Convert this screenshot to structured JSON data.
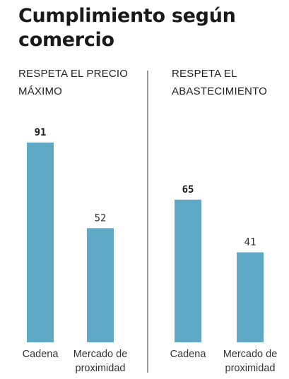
{
  "title": "Cumplimiento según comercio",
  "colors": {
    "bar": "#5fa8c6",
    "divider": "#555555"
  },
  "chart_data": [
    {
      "type": "bar",
      "title": "RESPETA EL PRECIO MÁXIMO",
      "categories": [
        "Cadena",
        "Mercado de proximidad"
      ],
      "category_lines": [
        [
          "Cadena"
        ],
        [
          "Mercado de",
          "proximidad"
        ]
      ],
      "values": [
        91,
        52
      ],
      "value_labels": [
        "91",
        "52"
      ],
      "bold_values": [
        true,
        false
      ],
      "ylim": [
        0,
        100
      ]
    },
    {
      "type": "bar",
      "title": "RESPETA EL ABASTECIMIENTO",
      "categories": [
        "Cadena",
        "Mercado de proximidad"
      ],
      "category_lines": [
        [
          "Cadena"
        ],
        [
          "Mercado de",
          "proximidad"
        ]
      ],
      "values": [
        65,
        41
      ],
      "value_labels": [
        "65",
        "41"
      ],
      "bold_values": [
        true,
        false
      ],
      "ylim": [
        0,
        100
      ]
    }
  ]
}
